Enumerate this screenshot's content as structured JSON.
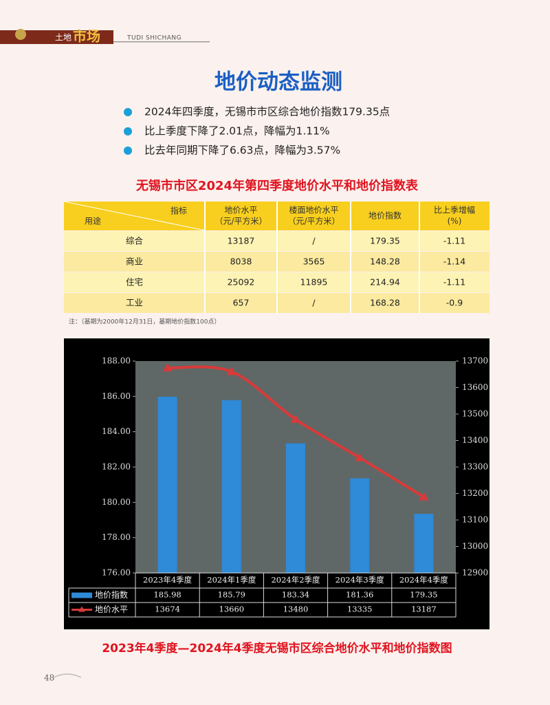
{
  "header": {
    "section": "土地",
    "brand": "市场",
    "pinyin": "TUDI SHICHANG"
  },
  "title": "地价动态监测",
  "bullets": [
    "2024年四季度，无锡市市区综合地价指数179.35点",
    "比上季度下降了2.01点，降幅为1.11%",
    "比去年同期下降了6.63点，降幅为3.57%"
  ],
  "table": {
    "title": "无锡市市区2024年第四季度地价水平和地价指数表",
    "corner_top": "指标",
    "corner_bottom": "用途",
    "columns": [
      [
        "地价水平",
        "（元/平方米）"
      ],
      [
        "楼面地价水平",
        "（元/平方米）"
      ],
      [
        "地价指数"
      ],
      [
        "比上季增幅",
        "(%)"
      ]
    ],
    "rows": [
      [
        "综合",
        "13187",
        "/",
        "179.35",
        "-1.11"
      ],
      [
        "商业",
        "8038",
        "3565",
        "148.28",
        "-1.14"
      ],
      [
        "住宅",
        "25092",
        "11895",
        "214.94",
        "-1.11"
      ],
      [
        "工业",
        "657",
        "/",
        "168.28",
        "-0.9"
      ]
    ]
  },
  "note": "注：（基期为2000年12月31日，基期地价指数100点）",
  "chart_data": {
    "type": "bar",
    "categories": [
      "2023年4季度",
      "2024年1季度",
      "2024年2季度",
      "2024年3季度",
      "2024年4季度"
    ],
    "series": [
      {
        "name": "地价指数",
        "color": "#2f8ad8",
        "values": [
          185.98,
          185.79,
          183.34,
          181.36,
          179.35
        ]
      },
      {
        "name": "地价水平",
        "color": "#d93a3a",
        "type": "line",
        "axis": "y2",
        "values": [
          13674,
          13660,
          13480,
          13335,
          13187
        ]
      }
    ],
    "ylim": [
      176,
      188
    ],
    "yticks": [
      {
        "value": 176,
        "label": "176.00"
      },
      {
        "value": 178,
        "label": "178.00"
      },
      {
        "value": 180,
        "label": "180.00"
      },
      {
        "value": 182,
        "label": "182.00"
      },
      {
        "value": 184,
        "label": "184.00"
      },
      {
        "value": 186,
        "label": "186.00"
      },
      {
        "value": 188,
        "label": "188.00"
      }
    ],
    "y2lim": [
      12900,
      13700
    ],
    "y2ticks": [
      12900,
      13000,
      13100,
      13200,
      13300,
      13400,
      13500,
      13600,
      13700
    ]
  },
  "caption": "2023年4季度—2024年4季度无锡市区综合地价水平和地价指数图",
  "page_number": "48"
}
